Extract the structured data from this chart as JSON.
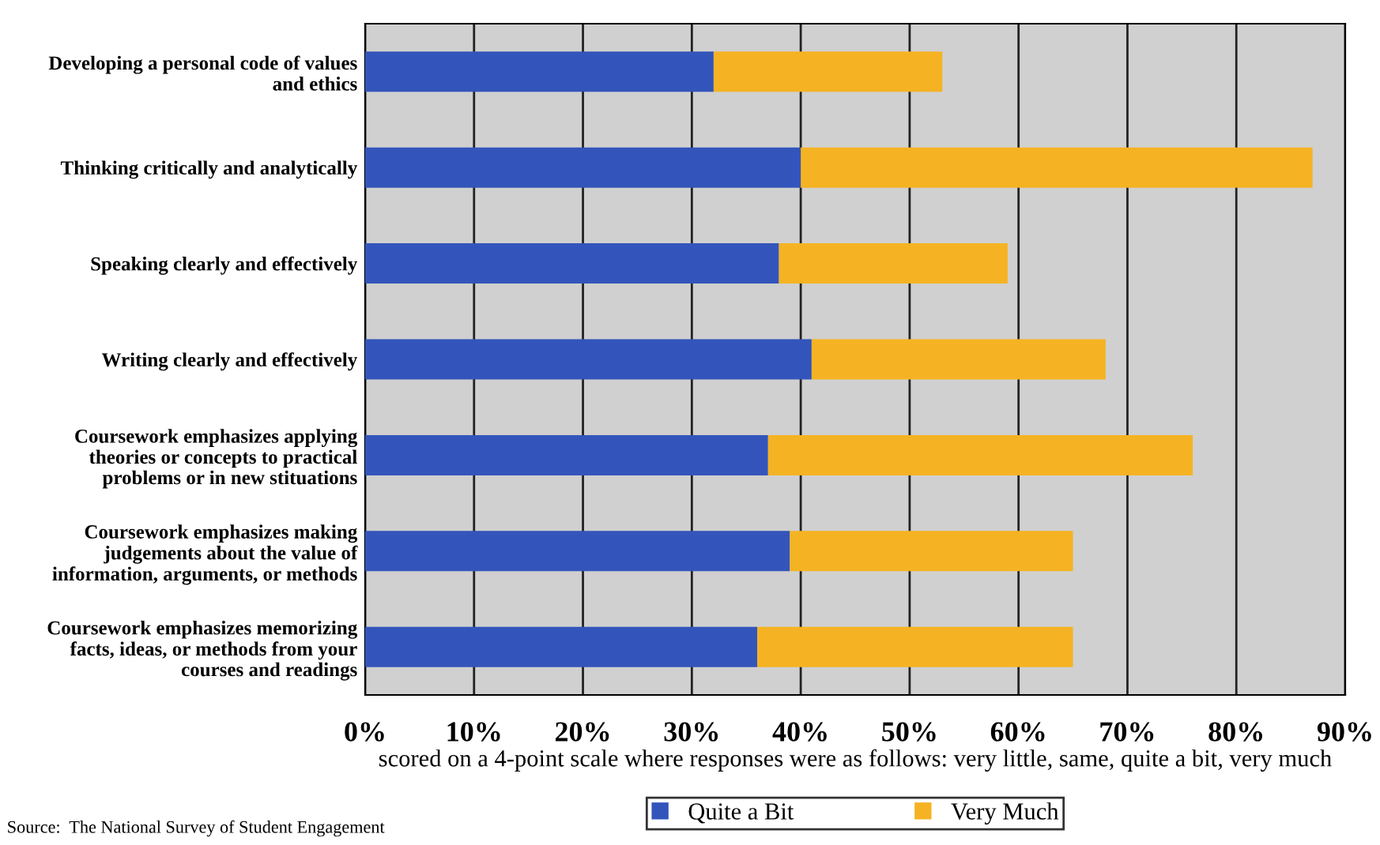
{
  "chart_data": {
    "type": "bar",
    "orientation": "horizontal",
    "stacked": true,
    "categories": [
      "Developing a personal code of values\nand ethics",
      "Thinking critically and analytically",
      "Speaking clearly and effectively",
      "Writing clearly and effectively",
      "Coursework emphasizes applying\ntheories or concepts to practical\nproblems or in new stituations",
      "Coursework emphasizes making\njudgements about the value of\ninformation, arguments, or methods",
      "Coursework emphasizes memorizing\nfacts, ideas, or methods from your\ncourses and readings"
    ],
    "series": [
      {
        "name": "Quite a Bit",
        "color": "#3355bb",
        "values": [
          32,
          40,
          38,
          41,
          37,
          39,
          36
        ]
      },
      {
        "name": "Very Much",
        "color": "#f5b323",
        "values": [
          21,
          47,
          21,
          27,
          39,
          26,
          29
        ]
      }
    ],
    "xlim": [
      0,
      90
    ],
    "xticks": [
      {
        "value": 0,
        "label": "0%"
      },
      {
        "value": 10,
        "label": "10%"
      },
      {
        "value": 20,
        "label": "20%"
      },
      {
        "value": 30,
        "label": "30%"
      },
      {
        "value": 40,
        "label": "40%"
      },
      {
        "value": 50,
        "label": "50%"
      },
      {
        "value": 60,
        "label": "60%"
      },
      {
        "value": 70,
        "label": "70%"
      },
      {
        "value": 80,
        "label": "80%"
      },
      {
        "value": 90,
        "label": "90%"
      }
    ],
    "xlabel": "scored on a 4-point scale where responses were as follows: very little, same, quite a bit, very much",
    "grid": "x",
    "legend": "bottom",
    "annotations": [
      "Source:  The National Survey of Student Engagement"
    ]
  }
}
